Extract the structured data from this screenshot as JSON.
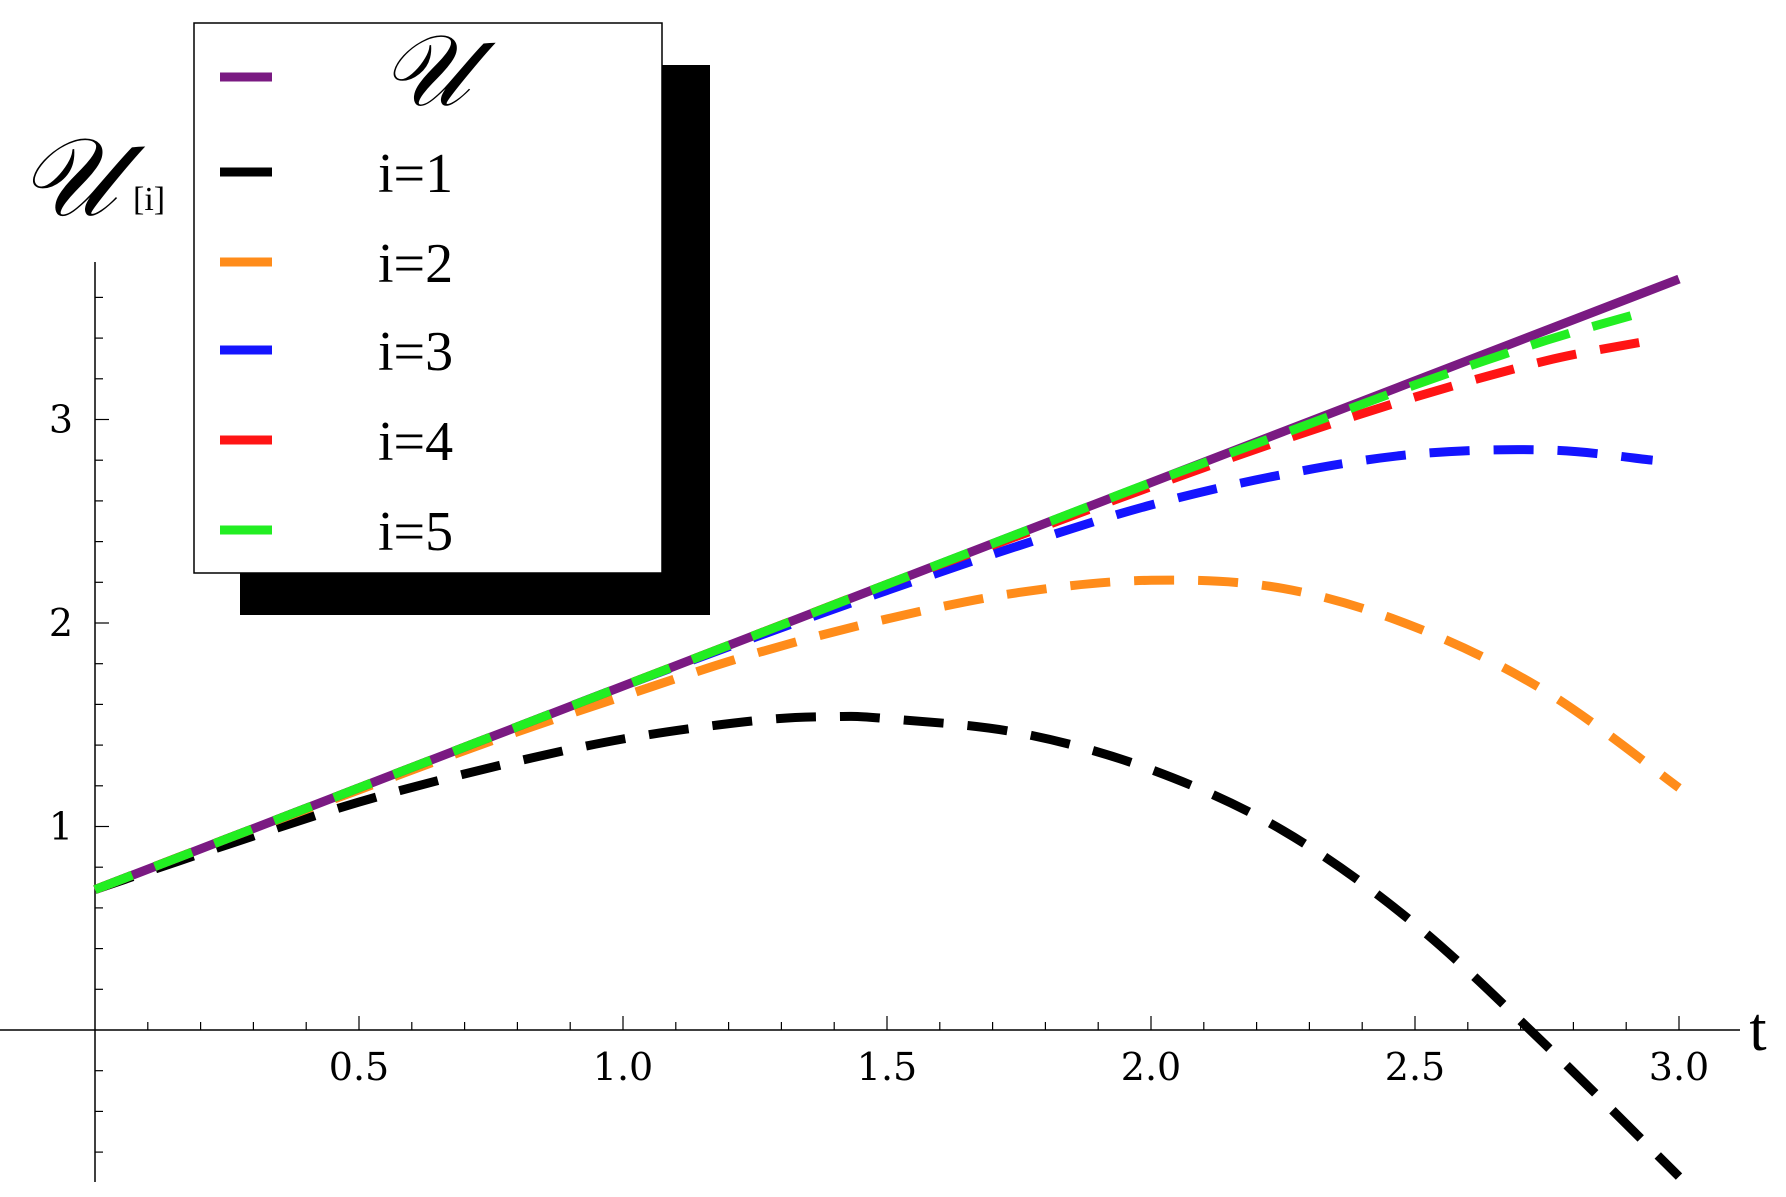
{
  "chart_data": {
    "type": "line",
    "xlabel": "t",
    "ylabel": "𝒰",
    "ylabel_subscript": "[i]",
    "xlim": [
      -0.06,
      3.05
    ],
    "ylim": [
      -0.75,
      3.8
    ],
    "x_ticks": [
      {
        "value": 0.5,
        "label": "0.5"
      },
      {
        "value": 1.0,
        "label": "1.0"
      },
      {
        "value": 1.5,
        "label": "1.5"
      },
      {
        "value": 2.0,
        "label": "2.0"
      },
      {
        "value": 2.5,
        "label": "2.5"
      },
      {
        "value": 3.0,
        "label": "3.0"
      }
    ],
    "y_ticks": [
      {
        "value": 1,
        "label": "1"
      },
      {
        "value": 2,
        "label": "2"
      },
      {
        "value": 3,
        "label": "3"
      }
    ],
    "legend_position": "top-left",
    "series": [
      {
        "name": "𝒰",
        "color": "#7a1a82",
        "dashed": false,
        "x": [
          0,
          0.25,
          0.5,
          0.75,
          1.0,
          1.25,
          1.5,
          1.75,
          2.0,
          2.25,
          2.5,
          2.75,
          3.0
        ],
        "y": [
          0.69,
          0.94,
          1.19,
          1.44,
          1.69,
          1.94,
          2.19,
          2.44,
          2.69,
          2.94,
          3.19,
          3.44,
          3.69
        ]
      },
      {
        "name": "i=1",
        "color": "#000000",
        "dashed": true,
        "x": [
          0,
          0.25,
          0.5,
          0.75,
          1.0,
          1.25,
          1.4,
          1.5,
          1.75,
          2.0,
          2.25,
          2.5,
          2.75,
          3.0
        ],
        "y": [
          0.69,
          0.91,
          1.12,
          1.29,
          1.43,
          1.52,
          1.54,
          1.53,
          1.46,
          1.28,
          0.98,
          0.52,
          -0.08,
          -0.72
        ]
      },
      {
        "name": "i=2",
        "color": "#ff8c1a",
        "dashed": true,
        "x": [
          0,
          0.25,
          0.5,
          0.75,
          1.0,
          1.25,
          1.5,
          1.75,
          2.0,
          2.25,
          2.5,
          2.75,
          3.0
        ],
        "y": [
          0.69,
          0.94,
          1.18,
          1.42,
          1.64,
          1.85,
          2.02,
          2.15,
          2.21,
          2.17,
          1.98,
          1.66,
          1.19
        ]
      },
      {
        "name": "i=3",
        "color": "#1414ff",
        "dashed": true,
        "x": [
          0,
          0.25,
          0.5,
          0.75,
          1.0,
          1.25,
          1.5,
          1.75,
          2.0,
          2.25,
          2.5,
          2.75,
          2.95
        ],
        "y": [
          0.69,
          0.94,
          1.19,
          1.44,
          1.69,
          1.93,
          2.16,
          2.38,
          2.58,
          2.73,
          2.83,
          2.85,
          2.8
        ]
      },
      {
        "name": "i=4",
        "color": "#ff1414",
        "dashed": true,
        "x": [
          0,
          0.25,
          0.5,
          0.75,
          1.0,
          1.25,
          1.5,
          1.75,
          2.0,
          2.25,
          2.5,
          2.75,
          2.95
        ],
        "y": [
          0.69,
          0.94,
          1.19,
          1.44,
          1.69,
          1.94,
          2.19,
          2.43,
          2.67,
          2.9,
          3.11,
          3.29,
          3.39
        ]
      },
      {
        "name": "i=5",
        "color": "#22ee22",
        "dashed": true,
        "x": [
          0,
          0.25,
          0.5,
          0.75,
          1.0,
          1.25,
          1.5,
          1.75,
          2.0,
          2.25,
          2.5,
          2.75,
          2.95
        ],
        "y": [
          0.69,
          0.94,
          1.19,
          1.44,
          1.69,
          1.94,
          2.19,
          2.44,
          2.69,
          2.93,
          3.17,
          3.39,
          3.54
        ]
      }
    ]
  }
}
